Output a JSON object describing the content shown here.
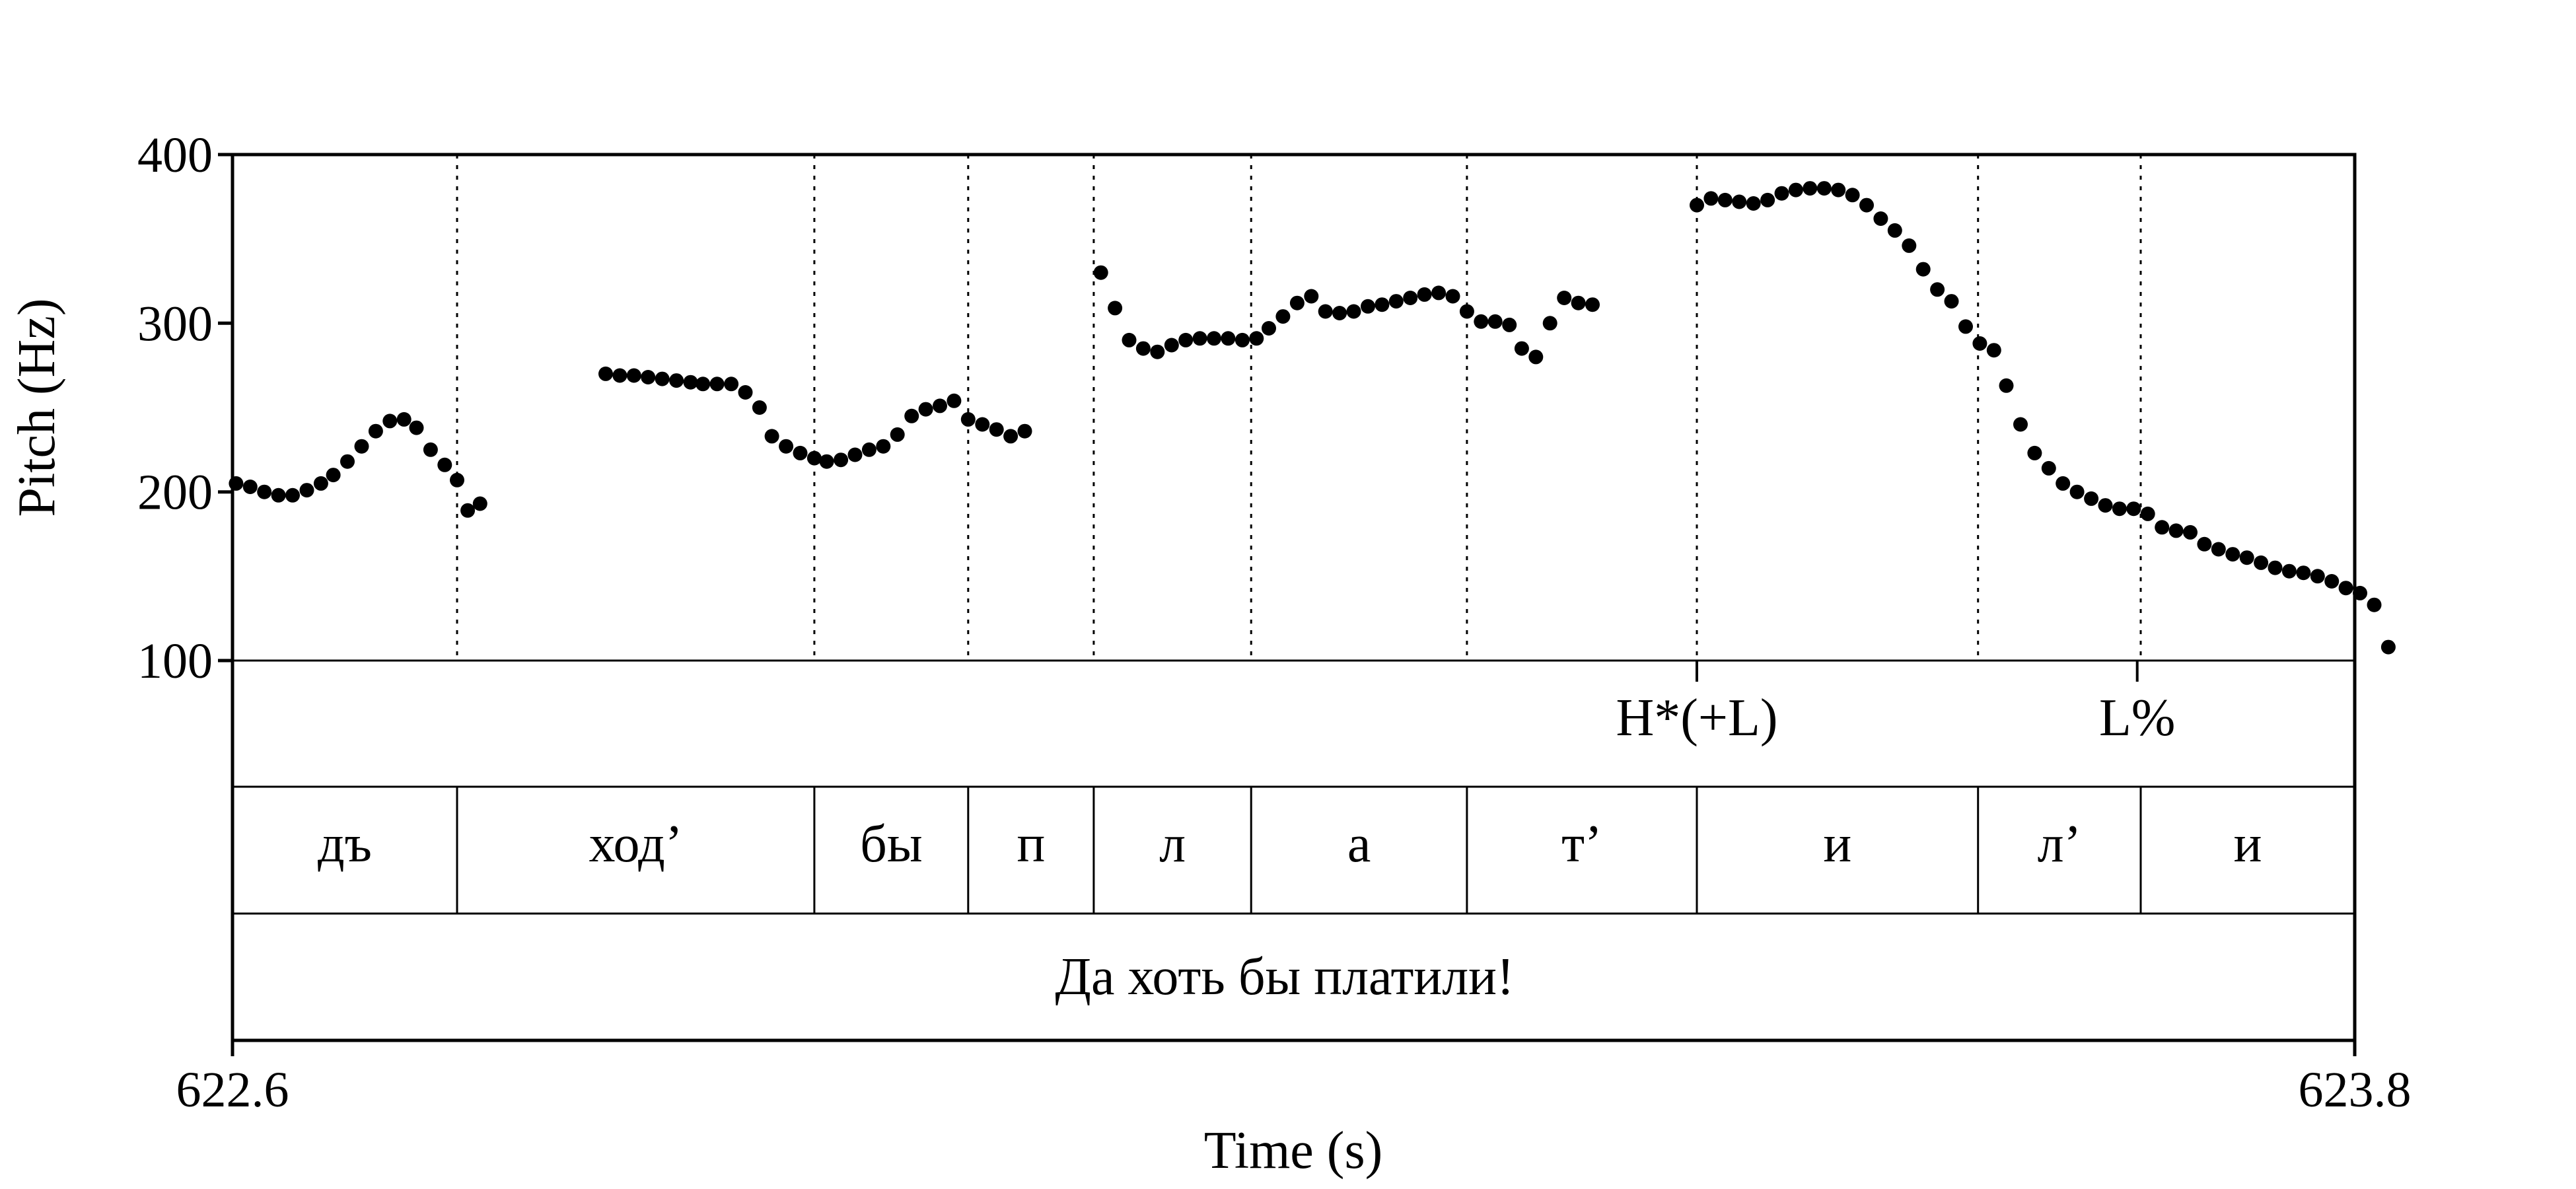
{
  "chart_data": {
    "type": "scatter",
    "xlabel": "Time (s)",
    "ylabel": "Pitch (Hz)",
    "xlim": [
      622.6,
      623.8
    ],
    "ylim": [
      100,
      400
    ],
    "x_tick_labels": [
      "622.6",
      "623.8"
    ],
    "y_ticks": [
      100,
      200,
      300,
      400
    ],
    "y_tick_labels": [
      "100",
      "200",
      "300",
      "400"
    ],
    "tone_tier": [
      {
        "label": "H*(+L)",
        "time": 623.428
      },
      {
        "label": "L%",
        "time": 623.677
      }
    ],
    "segment_boundaries": [
      622.727,
      622.929,
      623.016,
      623.087,
      623.176,
      623.298,
      623.428,
      623.587,
      623.679
    ],
    "segments": [
      {
        "label": "дъ",
        "start": 622.6,
        "end": 622.727
      },
      {
        "label": "ход’",
        "start": 622.727,
        "end": 622.929
      },
      {
        "label": "бы",
        "start": 622.929,
        "end": 623.016
      },
      {
        "label": "п",
        "start": 623.016,
        "end": 623.087
      },
      {
        "label": "л",
        "start": 623.087,
        "end": 623.176
      },
      {
        "label": "а",
        "start": 623.176,
        "end": 623.298
      },
      {
        "label": "т’",
        "start": 623.298,
        "end": 623.428
      },
      {
        "label": "и",
        "start": 623.428,
        "end": 623.587
      },
      {
        "label": "л’",
        "start": 623.587,
        "end": 623.679
      },
      {
        "label": "и",
        "start": 623.679,
        "end": 623.8
      }
    ],
    "sentence": "Да хоть бы платили!",
    "pitch_points": [
      [
        622.602,
        205
      ],
      [
        622.61,
        203
      ],
      [
        622.618,
        200
      ],
      [
        622.626,
        198
      ],
      [
        622.634,
        198
      ],
      [
        622.642,
        201
      ],
      [
        622.65,
        205
      ],
      [
        622.657,
        210
      ],
      [
        622.665,
        218
      ],
      [
        622.673,
        227
      ],
      [
        622.681,
        236
      ],
      [
        622.689,
        242
      ],
      [
        622.697,
        243
      ],
      [
        622.704,
        238
      ],
      [
        622.712,
        225
      ],
      [
        622.72,
        216
      ],
      [
        622.727,
        207
      ],
      [
        622.733,
        189
      ],
      [
        622.74,
        193
      ],
      [
        622.811,
        270
      ],
      [
        622.819,
        269
      ],
      [
        622.827,
        269
      ],
      [
        622.835,
        268
      ],
      [
        622.843,
        267
      ],
      [
        622.851,
        266
      ],
      [
        622.859,
        265
      ],
      [
        622.866,
        264
      ],
      [
        622.874,
        264
      ],
      [
        622.882,
        264
      ],
      [
        622.89,
        259
      ],
      [
        622.898,
        250
      ],
      [
        622.905,
        233
      ],
      [
        622.913,
        227
      ],
      [
        622.921,
        223
      ],
      [
        622.929,
        220
      ],
      [
        622.936,
        218
      ],
      [
        622.944,
        219
      ],
      [
        622.952,
        222
      ],
      [
        622.96,
        225
      ],
      [
        622.968,
        227
      ],
      [
        622.976,
        234
      ],
      [
        622.984,
        245
      ],
      [
        622.992,
        249
      ],
      [
        623.0,
        251
      ],
      [
        623.008,
        254
      ],
      [
        623.016,
        243
      ],
      [
        623.024,
        240
      ],
      [
        623.032,
        237
      ],
      [
        623.04,
        233
      ],
      [
        623.048,
        236
      ],
      [
        623.091,
        330
      ],
      [
        623.099,
        309
      ],
      [
        623.107,
        290
      ],
      [
        623.115,
        285
      ],
      [
        623.123,
        283
      ],
      [
        623.131,
        287
      ],
      [
        623.139,
        290
      ],
      [
        623.147,
        291
      ],
      [
        623.155,
        291
      ],
      [
        623.163,
        291
      ],
      [
        623.171,
        290
      ],
      [
        623.179,
        291
      ],
      [
        623.186,
        297
      ],
      [
        623.194,
        304
      ],
      [
        623.202,
        312
      ],
      [
        623.21,
        316
      ],
      [
        623.218,
        307
      ],
      [
        623.226,
        306
      ],
      [
        623.234,
        307
      ],
      [
        623.242,
        310
      ],
      [
        623.25,
        311
      ],
      [
        623.258,
        313
      ],
      [
        623.266,
        315
      ],
      [
        623.274,
        317
      ],
      [
        623.282,
        318
      ],
      [
        623.29,
        316
      ],
      [
        623.298,
        307
      ],
      [
        623.306,
        301
      ],
      [
        623.314,
        301
      ],
      [
        623.322,
        299
      ],
      [
        623.329,
        285
      ],
      [
        623.337,
        280
      ],
      [
        623.345,
        300
      ],
      [
        623.353,
        315
      ],
      [
        623.361,
        312
      ],
      [
        623.369,
        311
      ],
      [
        623.428,
        370
      ],
      [
        623.436,
        374
      ],
      [
        623.444,
        373
      ],
      [
        623.452,
        372
      ],
      [
        623.46,
        371
      ],
      [
        623.468,
        373
      ],
      [
        623.476,
        377
      ],
      [
        623.484,
        379
      ],
      [
        623.492,
        380
      ],
      [
        623.5,
        380
      ],
      [
        623.508,
        379
      ],
      [
        623.516,
        376
      ],
      [
        623.524,
        370
      ],
      [
        623.532,
        362
      ],
      [
        623.54,
        355
      ],
      [
        623.548,
        346
      ],
      [
        623.556,
        332
      ],
      [
        623.564,
        320
      ],
      [
        623.572,
        313
      ],
      [
        623.58,
        298
      ],
      [
        623.588,
        288
      ],
      [
        623.596,
        284
      ],
      [
        623.603,
        263
      ],
      [
        623.611,
        240
      ],
      [
        623.619,
        223
      ],
      [
        623.627,
        214
      ],
      [
        623.635,
        205
      ],
      [
        623.643,
        200
      ],
      [
        623.651,
        196
      ],
      [
        623.659,
        192
      ],
      [
        623.667,
        190
      ],
      [
        623.675,
        190
      ],
      [
        623.683,
        187
      ],
      [
        623.691,
        179
      ],
      [
        623.699,
        177
      ],
      [
        623.707,
        176
      ],
      [
        623.715,
        169
      ],
      [
        623.723,
        166
      ],
      [
        623.731,
        163
      ],
      [
        623.739,
        161
      ],
      [
        623.747,
        158
      ],
      [
        623.755,
        155
      ],
      [
        623.763,
        153
      ],
      [
        623.771,
        152
      ],
      [
        623.779,
        150
      ],
      [
        623.787,
        147
      ],
      [
        623.795,
        143
      ],
      [
        623.803,
        140
      ],
      [
        623.811,
        133
      ],
      [
        623.819,
        108
      ]
    ]
  }
}
